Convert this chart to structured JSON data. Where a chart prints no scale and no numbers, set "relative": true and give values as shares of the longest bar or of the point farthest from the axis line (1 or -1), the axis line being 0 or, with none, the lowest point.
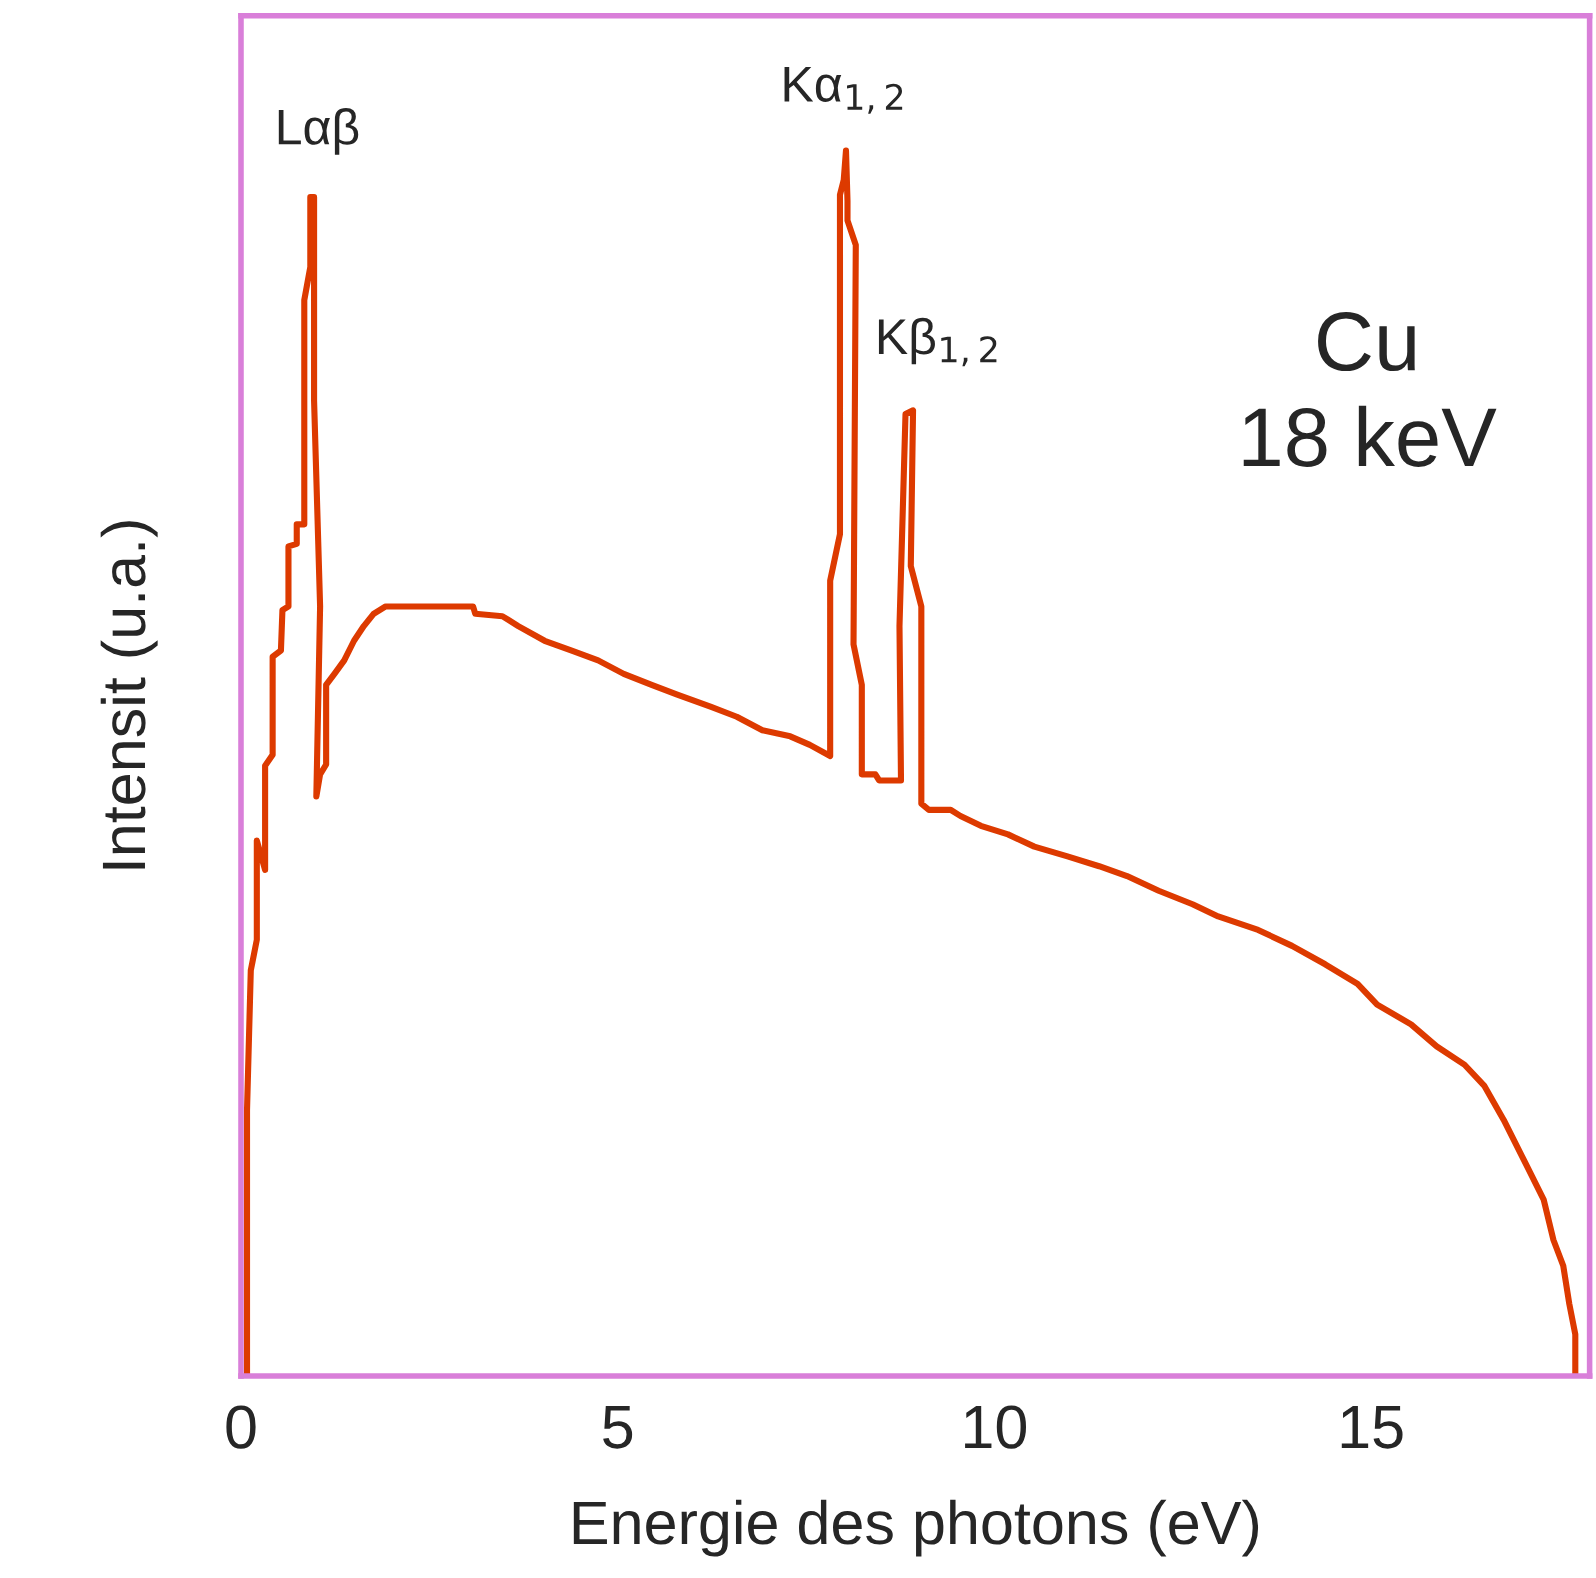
{
  "chart_data": {
    "type": "line",
    "relative": true,
    "xlabel": "Energie des photons (eV)",
    "ylabel": "Intensit (u.a.)",
    "xlim": [
      0,
      17.9
    ],
    "xticks": [
      0,
      5,
      10,
      15
    ],
    "grid": false,
    "legend": false,
    "marker": "none",
    "line_style": "solid",
    "series": [
      {
        "color": "#dd3a00",
        "x": [
          0.08,
          0.08,
          0.13,
          0.21,
          0.21,
          0.32,
          0.32,
          0.42,
          0.42,
          0.53,
          0.55,
          0.63,
          0.63,
          0.74,
          0.74,
          0.84,
          0.84,
          0.92,
          0.92,
          0.97,
          0.97,
          1.05,
          1.0,
          1.05,
          1.13,
          1.13,
          1.24,
          1.37,
          1.5,
          1.63,
          1.76,
          1.92,
          3.08,
          3.11,
          3.47,
          3.68,
          4.03,
          4.39,
          4.74,
          5.08,
          5.45,
          5.79,
          6.24,
          6.58,
          6.92,
          7.29,
          7.55,
          7.82,
          7.82,
          7.95,
          7.95,
          8.0,
          8.03,
          8.05,
          8.05,
          8.16,
          8.13,
          8.24,
          8.24,
          8.42,
          8.47,
          8.76,
          8.74,
          8.82,
          8.92,
          8.89,
          9.03,
          9.03,
          9.13,
          9.42,
          9.55,
          9.82,
          10.18,
          10.53,
          10.97,
          11.39,
          11.76,
          12.18,
          12.63,
          12.97,
          13.5,
          13.95,
          14.39,
          14.82,
          15.08,
          15.53,
          15.87,
          16.24,
          16.5,
          16.76,
          17.03,
          17.29,
          17.42,
          17.55,
          17.63,
          17.71,
          17.71
        ],
        "values": [
          0,
          0.217,
          0.331,
          0.356,
          0.437,
          0.413,
          0.498,
          0.507,
          0.587,
          0.592,
          0.625,
          0.628,
          0.677,
          0.679,
          0.695,
          0.695,
          0.878,
          0.905,
          0.962,
          0.962,
          0.796,
          0.628,
          0.473,
          0.491,
          0.499,
          0.564,
          0.573,
          0.584,
          0.6,
          0.612,
          0.622,
          0.628,
          0.628,
          0.622,
          0.62,
          0.612,
          0.6,
          0.592,
          0.584,
          0.573,
          0.564,
          0.556,
          0.546,
          0.538,
          0.527,
          0.522,
          0.515,
          0.506,
          0.649,
          0.687,
          0.964,
          0.976,
          1.0,
          0.959,
          0.943,
          0.923,
          0.597,
          0.564,
          0.491,
          0.491,
          0.486,
          0.486,
          0.612,
          0.785,
          0.788,
          0.661,
          0.628,
          0.467,
          0.462,
          0.462,
          0.457,
          0.449,
          0.442,
          0.432,
          0.424,
          0.416,
          0.408,
          0.396,
          0.385,
          0.375,
          0.364,
          0.351,
          0.336,
          0.32,
          0.303,
          0.287,
          0.269,
          0.254,
          0.237,
          0.209,
          0.176,
          0.144,
          0.111,
          0.09,
          0.059,
          0.034,
          0
        ]
      }
    ],
    "annotations": [
      "Lαβ",
      "Kα$_{1,2}$",
      "Kβ$_{1,2}$",
      "Cu\n18 keV"
    ]
  }
}
